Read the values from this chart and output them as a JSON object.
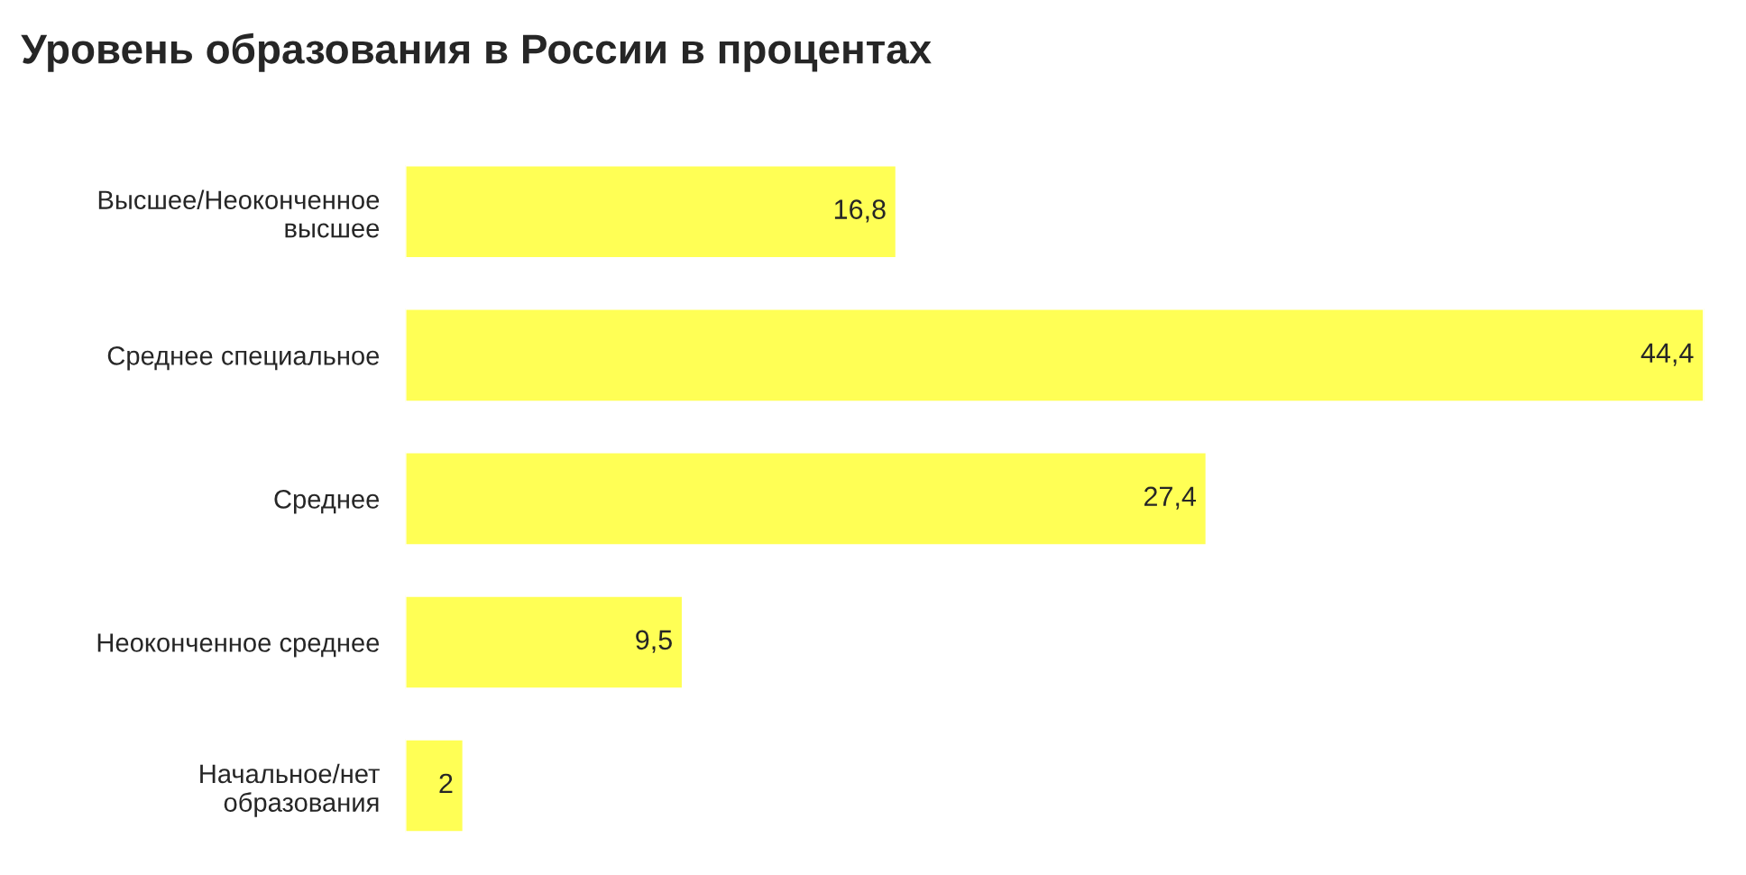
{
  "chart_data": {
    "type": "bar",
    "orientation": "horizontal",
    "title": "Уровень образования в России в процентах",
    "categories": [
      "Высшее/Неоконченное высшее",
      "Среднее специальное",
      "Среднее",
      "Неоконченное среднее",
      "Начальное/нет образования"
    ],
    "values": [
      16.8,
      44.4,
      27.4,
      9.5,
      2
    ],
    "value_labels": [
      "16,8",
      "44,4",
      "27,4",
      "9,5",
      "2"
    ],
    "color": "#ffff55",
    "grid": false,
    "legend": false
  }
}
